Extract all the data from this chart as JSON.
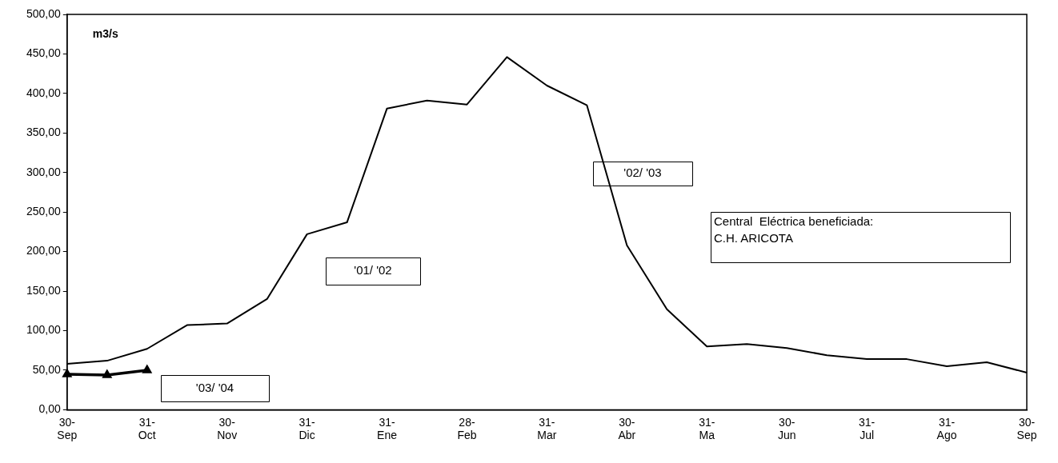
{
  "chart_data": {
    "type": "line",
    "ylabel": "m3/s",
    "categories": [
      "30-\nSep",
      null,
      "31-\nOct",
      null,
      "30-\nNov",
      null,
      "31-\nDic",
      null,
      "31-\nEne",
      null,
      "28-\nFeb",
      null,
      "31-\nMar",
      null,
      "30-\nAbr",
      null,
      "31-\nMa",
      null,
      "30-\nJun",
      null,
      "31-\nJul",
      null,
      "31-\nAgo",
      null,
      "30-\nSep"
    ],
    "series": [
      {
        "color": "#000000",
        "marker": "none",
        "values": [
          58,
          62,
          77,
          107,
          109,
          140,
          222,
          237,
          381,
          391,
          386,
          446,
          410,
          385,
          208,
          127,
          80,
          83,
          78,
          69,
          64,
          64,
          55,
          60,
          47
        ]
      },
      {
        "color": "#000000",
        "marker": "triangle",
        "values": [
          45,
          44,
          50,
          null,
          null,
          null,
          null,
          null,
          null,
          null,
          null,
          null,
          null,
          null,
          null,
          null,
          null,
          null,
          null,
          null,
          null,
          null,
          null,
          null,
          null
        ]
      }
    ],
    "ylim": [
      0,
      500
    ],
    "yticks": [
      {
        "value": 0,
        "label": "0,00"
      },
      {
        "value": 50,
        "label": "50,00"
      },
      {
        "value": 100,
        "label": "100,00"
      },
      {
        "value": 150,
        "label": "150,00"
      },
      {
        "value": 200,
        "label": "200,00"
      },
      {
        "value": 250,
        "label": "250,00"
      },
      {
        "value": 300,
        "label": "300,00"
      },
      {
        "value": 350,
        "label": "350,00"
      },
      {
        "value": 400,
        "label": "400,00"
      },
      {
        "value": 450,
        "label": "450,00"
      },
      {
        "value": 500,
        "label": "500,00"
      }
    ],
    "annotations": [
      "'01/ '02",
      "'02/ '03",
      "'03/ '04",
      "Central  Eléctrica beneficiada:\nC.H. ARICOTA"
    ],
    "grid": false,
    "legend": false
  }
}
